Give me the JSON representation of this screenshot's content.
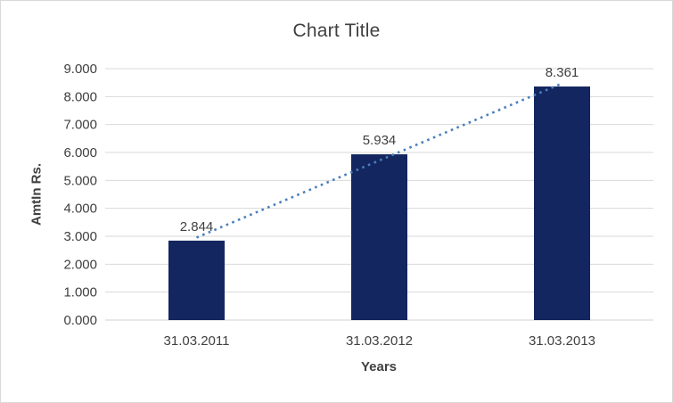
{
  "chart_data": {
    "type": "bar",
    "title": "Chart Title",
    "xlabel": "Years",
    "ylabel": "AmtIn Rs.",
    "categories": [
      "31.03.2011",
      "31.03.2012",
      "31.03.2013"
    ],
    "values": [
      2.844,
      5.934,
      8.361
    ],
    "data_labels": [
      "2.844",
      "5.934",
      "8.361"
    ],
    "ylim": [
      0,
      9
    ],
    "ytick_step": 1,
    "ytick_labels": [
      "0.000",
      "1.000",
      "2.000",
      "3.000",
      "4.000",
      "5.000",
      "6.000",
      "7.000",
      "8.000",
      "9.000"
    ],
    "grid": true,
    "legend_position": "none",
    "trendline": {
      "type": "linear",
      "style": "dotted"
    },
    "colors": {
      "bar": "#13265F",
      "trendline": "#4A7EBE",
      "gridline": "#D9D9D9",
      "axis_line": "#D9D9D9",
      "text": "#404040",
      "background": "#FFFFFF",
      "border": "#D9D9D9"
    }
  }
}
